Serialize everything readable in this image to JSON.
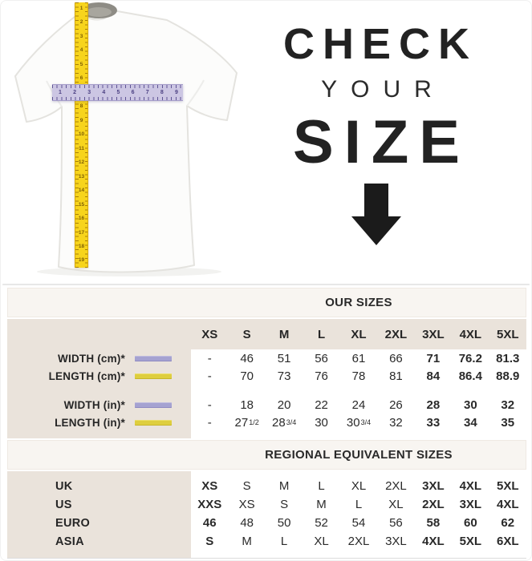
{
  "hero": {
    "line1": "CHECK",
    "line2": "YOUR",
    "line3": "SIZE"
  },
  "shirt": {
    "vertical_tape_numbers": [
      1,
      2,
      3,
      4,
      5,
      6,
      7,
      8,
      9,
      10,
      11,
      12,
      13,
      14,
      15,
      16,
      17,
      18,
      19
    ],
    "horizontal_tape_numbers": [
      1,
      2,
      3,
      4,
      5,
      6,
      7,
      8,
      9
    ]
  },
  "colors": {
    "tape_yellow": "#F7D41C",
    "tape_lavender": "#CCC6E3",
    "swatch_lavender": "#A5A2D1",
    "swatch_yellow": "#DECE3E",
    "label_column_beige": "#EAE3DB",
    "band_background": "#F8F5F1",
    "text": "#262626"
  },
  "size_table": {
    "heading": "OUR SIZES",
    "columns": [
      "XS",
      "S",
      "M",
      "L",
      "XL",
      "2XL",
      "3XL",
      "4XL",
      "5XL"
    ],
    "bold_columns_from": 6,
    "rows": [
      {
        "label": "WIDTH (cm)*",
        "swatch": "lavender",
        "values": [
          "-",
          "46",
          "51",
          "56",
          "61",
          "66",
          "71",
          "76.2",
          "81.3"
        ]
      },
      {
        "label": "LENGTH (cm)*",
        "swatch": "yellow",
        "values": [
          "-",
          "70",
          "73",
          "76",
          "78",
          "81",
          "84",
          "86.4",
          "88.9"
        ]
      },
      {
        "label": "WIDTH (in)*",
        "swatch": "lavender",
        "values": [
          "-",
          "18",
          "20",
          "22",
          "24",
          "26",
          "28",
          "30",
          "32"
        ]
      },
      {
        "label": "LENGTH (in)*",
        "swatch": "yellow",
        "values": [
          "-",
          "27 1/2",
          "28 3/4",
          "30",
          "30 3/4",
          "32",
          "33",
          "34",
          "35"
        ]
      }
    ]
  },
  "regional_table": {
    "heading": "REGIONAL EQUIVALENT SIZES",
    "bold_columns_from": 6,
    "bold_first_column": true,
    "rows": [
      {
        "label": "UK",
        "values": [
          "XS",
          "S",
          "M",
          "L",
          "XL",
          "2XL",
          "3XL",
          "4XL",
          "5XL"
        ]
      },
      {
        "label": "US",
        "values": [
          "XXS",
          "XS",
          "S",
          "M",
          "L",
          "XL",
          "2XL",
          "3XL",
          "4XL"
        ]
      },
      {
        "label": "EURO",
        "values": [
          "46",
          "48",
          "50",
          "52",
          "54",
          "56",
          "58",
          "60",
          "62"
        ]
      },
      {
        "label": "ASIA",
        "values": [
          "S",
          "M",
          "L",
          "XL",
          "2XL",
          "3XL",
          "4XL",
          "5XL",
          "6XL"
        ]
      }
    ]
  },
  "chart_data": [
    {
      "type": "table",
      "title": "OUR SIZES",
      "columns": [
        "",
        "XS",
        "S",
        "M",
        "L",
        "XL",
        "2XL",
        "3XL",
        "4XL",
        "5XL"
      ],
      "rows": [
        [
          "WIDTH (cm)*",
          "-",
          "46",
          "51",
          "56",
          "61",
          "66",
          "71",
          "76.2",
          "81.3"
        ],
        [
          "LENGTH (cm)*",
          "-",
          "70",
          "73",
          "76",
          "78",
          "81",
          "84",
          "86.4",
          "88.9"
        ],
        [
          "WIDTH (in)*",
          "-",
          "18",
          "20",
          "22",
          "24",
          "26",
          "28",
          "30",
          "32"
        ],
        [
          "LENGTH (in)*",
          "-",
          "27 1/2",
          "28 3/4",
          "30",
          "30 3/4",
          "32",
          "33",
          "34",
          "35"
        ]
      ]
    },
    {
      "type": "table",
      "title": "REGIONAL EQUIVALENT SIZES",
      "columns": [
        "",
        "XS",
        "S",
        "M",
        "L",
        "XL",
        "2XL",
        "3XL",
        "4XL",
        "5XL"
      ],
      "rows": [
        [
          "UK",
          "XS",
          "S",
          "M",
          "L",
          "XL",
          "2XL",
          "3XL",
          "4XL",
          "5XL"
        ],
        [
          "US",
          "XXS",
          "XS",
          "S",
          "M",
          "L",
          "XL",
          "2XL",
          "3XL",
          "4XL"
        ],
        [
          "EURO",
          "46",
          "48",
          "50",
          "52",
          "54",
          "56",
          "58",
          "60",
          "62"
        ],
        [
          "ASIA",
          "S",
          "M",
          "L",
          "XL",
          "2XL",
          "3XL",
          "4XL",
          "5XL",
          "6XL"
        ]
      ]
    }
  ]
}
